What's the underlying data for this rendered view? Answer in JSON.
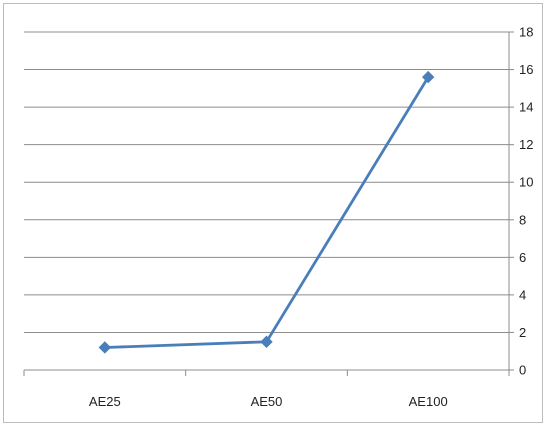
{
  "chart_data": {
    "type": "line",
    "categories": [
      "AE25",
      "AE50",
      "AE100"
    ],
    "series": [
      {
        "values": [
          1.2,
          1.5,
          15.6
        ]
      }
    ],
    "ylim": [
      0,
      18
    ],
    "yticks": [
      "0",
      "2",
      "4",
      "6",
      "8",
      "10",
      "12",
      "14",
      "16",
      "18"
    ],
    "y_axis_side": "right",
    "grid": true,
    "legend": "none",
    "title": "",
    "xlabel": "",
    "ylabel": ""
  },
  "colors": {
    "series_line": "#4a7ebb",
    "gridline": "#8c8c8c",
    "axis": "#8c8c8c",
    "text": "#222222"
  }
}
